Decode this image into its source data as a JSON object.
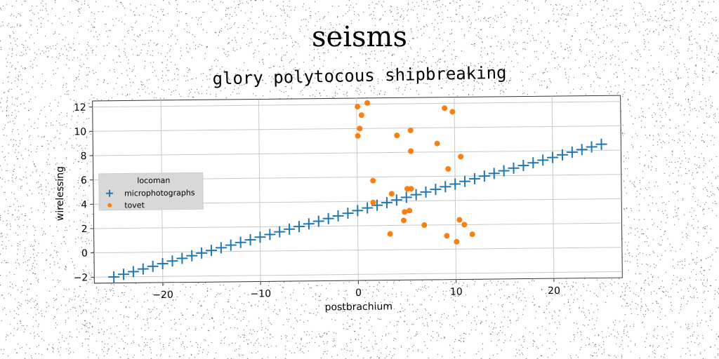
{
  "figure": {
    "suptitle": "seisms",
    "title": "glory polytocous shipbreaking"
  },
  "chart_data": {
    "type": "scatter",
    "xlabel": "postbrachium",
    "ylabel": "wirelessing",
    "xlim": [
      -27,
      27
    ],
    "ylim": [
      -2.5,
      12.5
    ],
    "xticks": [
      -20,
      -10,
      0,
      10,
      20
    ],
    "xtick_labels": [
      "−20",
      "−10",
      "0",
      "10",
      "20"
    ],
    "yticks": [
      -2,
      0,
      2,
      4,
      6,
      8,
      10,
      12
    ],
    "yticks_labels": [
      "−2",
      "0",
      "2",
      "4",
      "6",
      "8",
      "10",
      "12"
    ],
    "grid": true,
    "legend": {
      "title": "locoman",
      "placement": "center-left"
    },
    "series": [
      {
        "name": "microphotographs",
        "marker": "plus",
        "color": "#1f77b4",
        "x": [
          -25,
          -24,
          -23,
          -22,
          -21,
          -20,
          -19,
          -18,
          -17,
          -16,
          -15,
          -14,
          -13,
          -12,
          -11,
          -10,
          -9,
          -8,
          -7,
          -6,
          -5,
          -4,
          -3,
          -2,
          -1,
          0,
          1,
          2,
          3,
          4,
          5,
          6,
          7,
          8,
          9,
          10,
          11,
          12,
          13,
          14,
          15,
          16,
          17,
          18,
          19,
          20,
          21,
          22,
          23,
          24,
          25
        ],
        "y": [
          -2.0,
          -1.79,
          -1.58,
          -1.37,
          -1.16,
          -0.95,
          -0.74,
          -0.53,
          -0.32,
          -0.11,
          0.1,
          0.31,
          0.52,
          0.73,
          0.94,
          1.15,
          1.36,
          1.57,
          1.78,
          1.99,
          2.2,
          2.41,
          2.62,
          2.83,
          3.04,
          3.25,
          3.46,
          3.67,
          3.88,
          4.09,
          4.3,
          4.51,
          4.72,
          4.93,
          5.14,
          5.35,
          5.56,
          5.77,
          5.98,
          6.19,
          6.4,
          6.61,
          6.82,
          7.03,
          7.24,
          7.45,
          7.66,
          7.87,
          8.08,
          8.29,
          8.5
        ]
      },
      {
        "name": "tovet",
        "marker": "circle",
        "color": "#ff7f0e",
        "x": [
          0.1,
          1.1,
          0.5,
          0.3,
          0.1,
          9.0,
          9.8,
          4.1,
          5.5,
          8.2,
          5.5,
          10.6,
          9.3,
          1.6,
          5.1,
          5.5,
          3.5,
          1.6,
          4.8,
          5.3,
          4.7,
          6.8,
          3.3,
          10.4,
          10.9,
          9.1,
          11.7,
          10.1
        ],
        "y": [
          11.8,
          12.1,
          11.1,
          10.0,
          9.4,
          11.6,
          11.3,
          9.4,
          9.8,
          8.7,
          8.1,
          7.6,
          6.6,
          5.7,
          5.0,
          5.0,
          4.6,
          3.9,
          3.1,
          3.2,
          2.4,
          2.0,
          1.3,
          2.4,
          2.0,
          1.1,
          1.2,
          0.6
        ]
      }
    ]
  }
}
